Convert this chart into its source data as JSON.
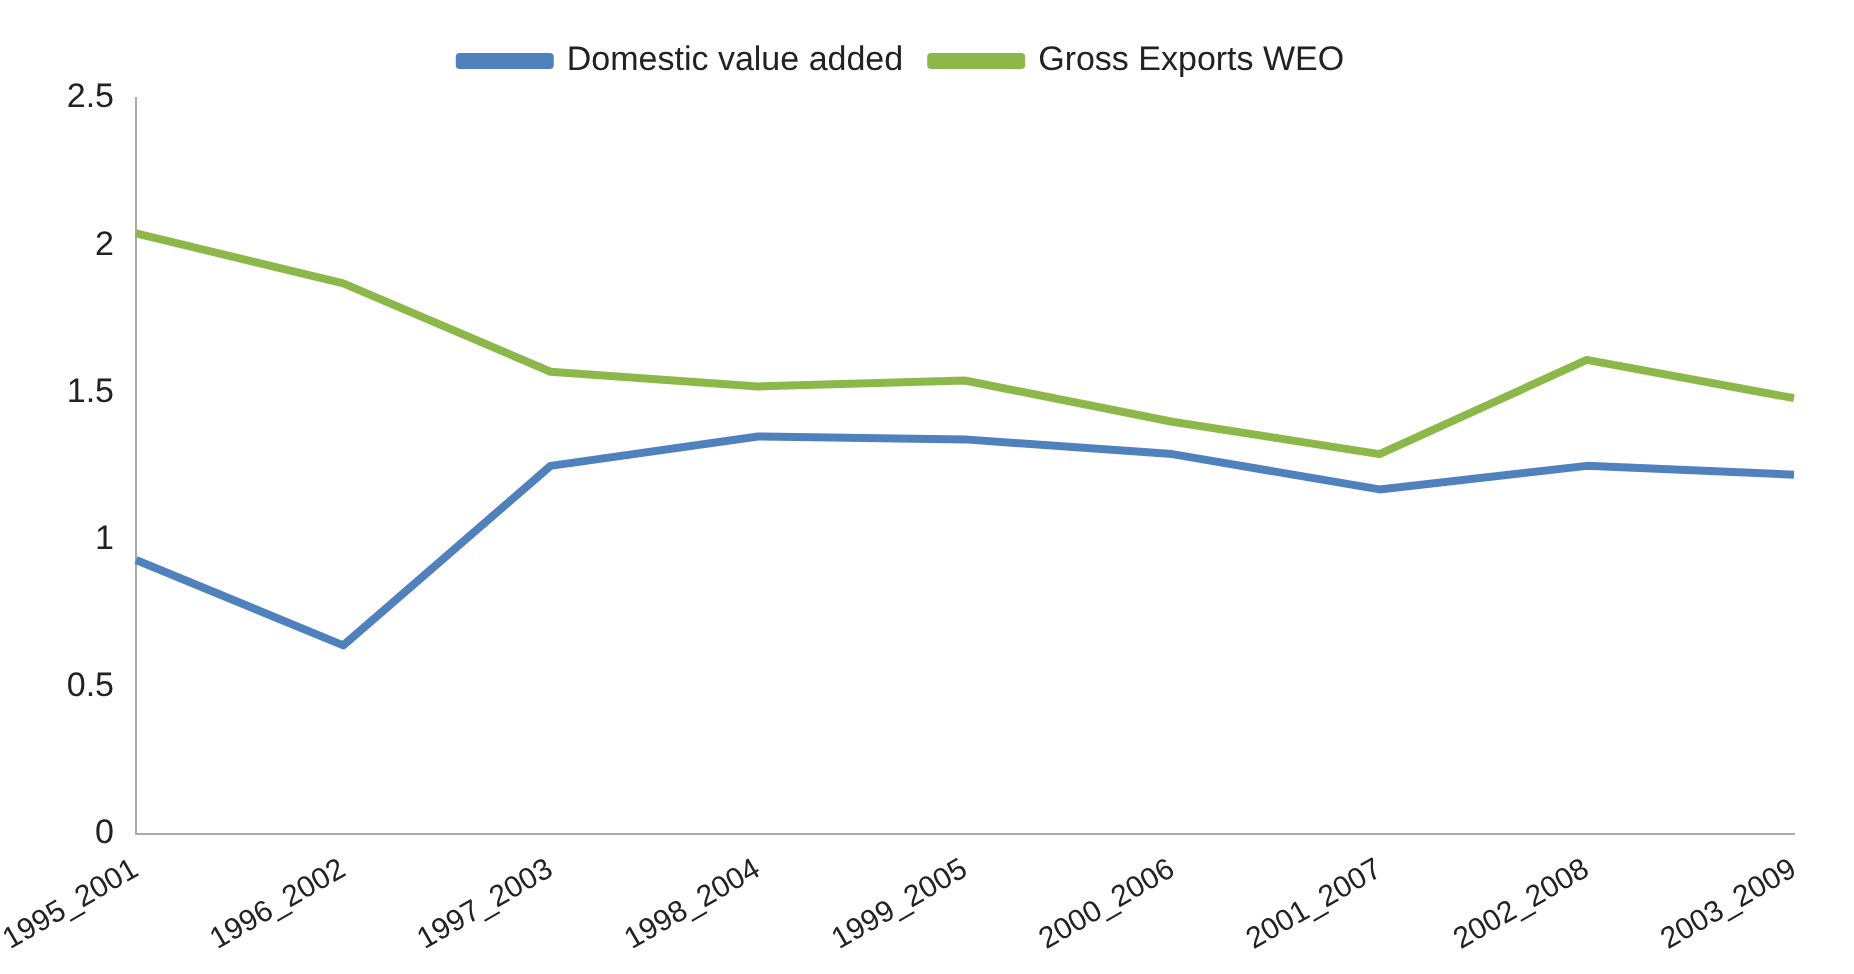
{
  "chart_data": {
    "type": "line",
    "categories": [
      "1995_2001",
      "1996_2002",
      "1997_2003",
      "1998_2004",
      "1999_2005",
      "2000_2006",
      "2001_2007",
      "2002_2008",
      "2003_2009"
    ],
    "series": [
      {
        "name": "Domestic value added",
        "color": "#4f81bd",
        "values": [
          0.93,
          0.64,
          1.25,
          1.35,
          1.34,
          1.29,
          1.17,
          1.25,
          1.22
        ]
      },
      {
        "name": "Gross Exports WEO",
        "color": "#8cb84a",
        "values": [
          2.04,
          1.87,
          1.57,
          1.52,
          1.54,
          1.4,
          1.29,
          1.61,
          1.48
        ]
      }
    ],
    "ylim": [
      0,
      2.5
    ],
    "yticks": [
      0,
      0.5,
      1,
      1.5,
      2,
      2.5
    ],
    "grid": false,
    "legend": "top",
    "marker": "none",
    "line_style": "solid"
  }
}
